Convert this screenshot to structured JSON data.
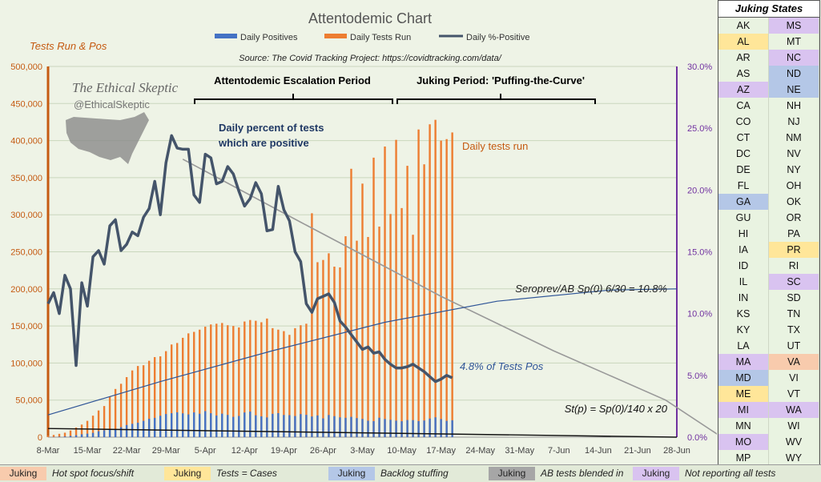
{
  "chart_data": {
    "type": "bar+line",
    "title": "Attentodemic Chart",
    "source": "Source:  The Covid Tracking Project: https://covidtracking.com/data/",
    "y_left_label": "Tests Run & Pos",
    "ylim_left": [
      0,
      500000
    ],
    "ylim_right": [
      0,
      0.3
    ],
    "y_left_ticks": [
      "0",
      "50,000",
      "100,000",
      "150,000",
      "200,000",
      "250,000",
      "300,000",
      "350,000",
      "400,000",
      "450,000",
      "500,000"
    ],
    "y_right_ticks": [
      "0.0%",
      "5.0%",
      "10.0%",
      "15.0%",
      "20.0%",
      "25.0%",
      "30.0%"
    ],
    "x_ticks": [
      "8-Mar",
      "15-Mar",
      "22-Mar",
      "29-Mar",
      "5-Apr",
      "12-Apr",
      "19-Apr",
      "26-Apr",
      "3-May",
      "10-May",
      "17-May",
      "24-May",
      "31-May",
      "7-Jun",
      "14-Jun",
      "21-Jun",
      "28-Jun"
    ],
    "legend": [
      "Daily Positives",
      "Daily Tests Run",
      "Daily %-Positive"
    ],
    "colors": {
      "positives": "#4472c4",
      "tests": "#ed7d31",
      "pct": "#44546a",
      "trend": "#999999",
      "sero": "#2f5597",
      "stp": "#111111",
      "right_axis": "#7030a0",
      "left_axis": "#c55a11"
    },
    "series": [
      {
        "name": "Daily Tests Run",
        "values": [
          2000,
          3000,
          4500,
          6000,
          9000,
          13000,
          17000,
          22000,
          29000,
          36000,
          42000,
          55000,
          65000,
          72000,
          81000,
          90000,
          96000,
          97000,
          103000,
          108000,
          109000,
          116000,
          125000,
          127000,
          134000,
          140000,
          142000,
          145000,
          149000,
          152000,
          153000,
          154000,
          151000,
          150000,
          148000,
          156000,
          158000,
          157000,
          155000,
          160000,
          147000,
          145000,
          143000,
          138000,
          147000,
          151000,
          153000,
          302000,
          236000,
          239000,
          248000,
          230000,
          229000,
          271000,
          362000,
          265000,
          342000,
          270000,
          377000,
          284000,
          392000,
          301000,
          401000,
          309000,
          366000,
          273000,
          415000,
          368000,
          422000,
          428000,
          400000,
          402000,
          411000
        ]
      },
      {
        "name": "Daily Positives",
        "values": [
          100,
          300,
          600,
          1000,
          1700,
          2600,
          3900,
          4700,
          5800,
          8000,
          9300,
          10400,
          11000,
          13500,
          16400,
          18000,
          19500,
          22000,
          24800,
          26000,
          28900,
          31200,
          32300,
          33500,
          32100,
          30700,
          33400,
          31600,
          35100,
          32300,
          29200,
          31700,
          30000,
          27400,
          28600,
          33300,
          34500,
          29500,
          28100,
          26600,
          31500,
          32400,
          29900,
          29700,
          28500,
          31100,
          30100,
          27900,
          29300,
          25300,
          29900,
          28300,
          26700,
          26100,
          27400,
          25700,
          24600,
          22200,
          21600,
          26200,
          24500,
          23400,
          22300,
          21500,
          23100,
          23000,
          21700,
          22500,
          25100,
          26800,
          24400,
          22000,
          22800
        ]
      },
      {
        "name": "Daily %-Positive",
        "values": [
          0.108,
          0.117,
          0.1,
          0.131,
          0.12,
          0.058,
          0.125,
          0.106,
          0.146,
          0.151,
          0.14,
          0.171,
          0.176,
          0.151,
          0.156,
          0.166,
          0.163,
          0.178,
          0.185,
          0.207,
          0.18,
          0.222,
          0.244,
          0.234,
          0.233,
          0.233,
          0.196,
          0.19,
          0.229,
          0.226,
          0.205,
          0.207,
          0.219,
          0.213,
          0.199,
          0.187,
          0.193,
          0.206,
          0.197,
          0.167,
          0.168,
          0.203,
          0.184,
          0.175,
          0.15,
          0.142,
          0.108,
          0.101,
          0.112,
          0.114,
          0.116,
          0.109,
          0.094,
          0.089,
          0.083,
          0.077,
          0.071,
          0.073,
          0.068,
          0.069,
          0.063,
          0.059,
          0.056,
          0.056,
          0.057,
          0.059,
          0.056,
          0.053,
          0.049,
          0.045,
          0.047,
          0.05,
          0.048
        ]
      }
    ],
    "curves": {
      "trend": {
        "x": [
          24,
          45,
          60,
          70,
          80,
          90,
          100,
          110,
          120
        ],
        "y": [
          0.225,
          0.174,
          0.138,
          0.114,
          0.092,
          0.07,
          0.05,
          0.03,
          0.0
        ]
      },
      "seroprev": {
        "x": [
          0,
          20,
          40,
          60,
          80,
          100,
          112
        ],
        "y": [
          0.018,
          0.045,
          0.07,
          0.093,
          0.11,
          0.119,
          0.12
        ]
      },
      "stp": {
        "x": [
          0,
          112
        ],
        "y": [
          0.007,
          0.0
        ]
      }
    },
    "annotations": {
      "escalation": "Attentodemic Escalation Period",
      "juking_period": "Juking Period: 'Puffing-the-Curve'",
      "daily_pct": "Daily percent of tests\nwhich are positive",
      "daily_tests": "Daily tests run",
      "seroprev": "Seroprev/AB Sp(0) 6/30 = 10.8%",
      "pct_pos": "4.8% of Tests Pos",
      "stp": "St(p) = Sp(0)/140 x 20",
      "watermark_name": "The Ethical Skeptic",
      "watermark_handle": "@EthicalSkeptic"
    }
  },
  "sidebar": {
    "title": "Juking States",
    "rows": [
      [
        {
          "s": "AK",
          "c": "none"
        },
        {
          "s": "MS",
          "c": "purple"
        }
      ],
      [
        {
          "s": "AL",
          "c": "yellow"
        },
        {
          "s": "MT",
          "c": "none"
        }
      ],
      [
        {
          "s": "AR",
          "c": "none"
        },
        {
          "s": "NC",
          "c": "purple"
        }
      ],
      [
        {
          "s": "AS",
          "c": "none"
        },
        {
          "s": "ND",
          "c": "blue"
        }
      ],
      [
        {
          "s": "AZ",
          "c": "purple"
        },
        {
          "s": "NE",
          "c": "blue"
        }
      ],
      [
        {
          "s": "CA",
          "c": "none"
        },
        {
          "s": "NH",
          "c": "none"
        }
      ],
      [
        {
          "s": "CO",
          "c": "none"
        },
        {
          "s": "NJ",
          "c": "none"
        }
      ],
      [
        {
          "s": "CT",
          "c": "none"
        },
        {
          "s": "NM",
          "c": "none"
        }
      ],
      [
        {
          "s": "DC",
          "c": "none"
        },
        {
          "s": "NV",
          "c": "none"
        }
      ],
      [
        {
          "s": "DE",
          "c": "none"
        },
        {
          "s": "NY",
          "c": "none"
        }
      ],
      [
        {
          "s": "FL",
          "c": "none"
        },
        {
          "s": "OH",
          "c": "none"
        }
      ],
      [
        {
          "s": "GA",
          "c": "blue"
        },
        {
          "s": "OK",
          "c": "none"
        }
      ],
      [
        {
          "s": "GU",
          "c": "none"
        },
        {
          "s": "OR",
          "c": "none"
        }
      ],
      [
        {
          "s": "HI",
          "c": "none"
        },
        {
          "s": "PA",
          "c": "none"
        }
      ],
      [
        {
          "s": "IA",
          "c": "none"
        },
        {
          "s": "PR",
          "c": "yellow"
        }
      ],
      [
        {
          "s": "ID",
          "c": "none"
        },
        {
          "s": "RI",
          "c": "none"
        }
      ],
      [
        {
          "s": "IL",
          "c": "none"
        },
        {
          "s": "SC",
          "c": "purple"
        }
      ],
      [
        {
          "s": "IN",
          "c": "none"
        },
        {
          "s": "SD",
          "c": "none"
        }
      ],
      [
        {
          "s": "KS",
          "c": "none"
        },
        {
          "s": "TN",
          "c": "none"
        }
      ],
      [
        {
          "s": "KY",
          "c": "none"
        },
        {
          "s": "TX",
          "c": "none"
        }
      ],
      [
        {
          "s": "LA",
          "c": "none"
        },
        {
          "s": "UT",
          "c": "none"
        }
      ],
      [
        {
          "s": "MA",
          "c": "purple"
        },
        {
          "s": "VA",
          "c": "orange"
        }
      ],
      [
        {
          "s": "MD",
          "c": "blue"
        },
        {
          "s": "VI",
          "c": "none"
        }
      ],
      [
        {
          "s": "ME",
          "c": "yellow"
        },
        {
          "s": "VT",
          "c": "none"
        }
      ],
      [
        {
          "s": "MI",
          "c": "purple"
        },
        {
          "s": "WA",
          "c": "purple"
        }
      ],
      [
        {
          "s": "MN",
          "c": "none"
        },
        {
          "s": "WI",
          "c": "none"
        }
      ],
      [
        {
          "s": "MO",
          "c": "purple"
        },
        {
          "s": "WV",
          "c": "none"
        }
      ],
      [
        {
          "s": "MP",
          "c": "none"
        },
        {
          "s": "WY",
          "c": "none"
        }
      ]
    ],
    "colors": {
      "orange": "#f8cbad",
      "yellow": "#ffe699",
      "blue": "#b4c7e7",
      "gray": "#a6a6a6",
      "purple": "#d9c3f0",
      "none": "#e9f3e1"
    }
  },
  "legend_bar": {
    "items": [
      {
        "label": "Juking",
        "text": "Hot spot focus/shift",
        "color": "#f8cbad"
      },
      {
        "label": "Juking",
        "text": "Tests = Cases",
        "color": "#ffe699"
      },
      {
        "label": "Juking",
        "text": "Backlog stuffing",
        "color": "#b4c7e7"
      },
      {
        "label": "Juking",
        "text": "AB tests blended in",
        "color": "#a6a6a6"
      },
      {
        "label": "Juking",
        "text": "Not reporting all tests",
        "color": "#d9c3f0"
      }
    ]
  }
}
